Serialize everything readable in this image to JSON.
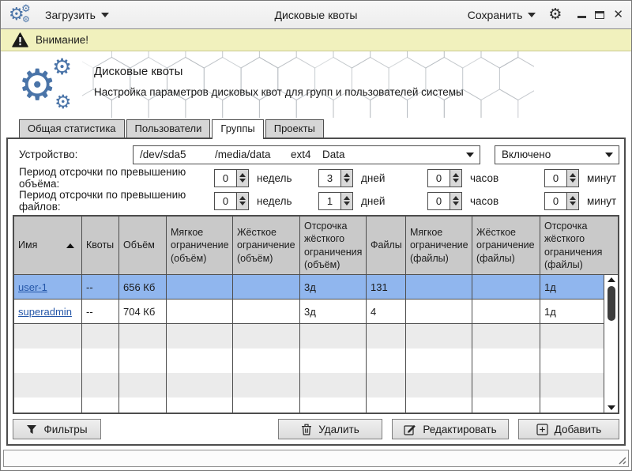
{
  "window": {
    "load_menu": "Загрузить",
    "title": "Дисковые квоты",
    "save_menu": "Сохранить"
  },
  "warning": {
    "text": "Внимание!"
  },
  "header": {
    "title": "Дисковые квоты",
    "subtitle": "Настройка параметров дисковых квот для групп и пользователей системы"
  },
  "tabs": [
    {
      "label": "Общая статистика",
      "active": false
    },
    {
      "label": "Пользователи",
      "active": false
    },
    {
      "label": "Группы",
      "active": true
    },
    {
      "label": "Проекты",
      "active": false
    }
  ],
  "device_row": {
    "label": "Устройство:",
    "device": {
      "path": "/dev/sda5",
      "mount": "/media/data",
      "fs": "ext4",
      "name": "Data"
    },
    "status": "Включено"
  },
  "grace": {
    "units": {
      "weeks": "недель",
      "days": "дней",
      "hours": "часов",
      "minutes": "минут"
    },
    "volume": {
      "label": "Период отсрочки по превышению объёма:",
      "weeks": "0",
      "days": "3",
      "hours": "0",
      "minutes": "0"
    },
    "files": {
      "label": "Период отсрочки по превышению файлов:",
      "weeks": "0",
      "days": "1",
      "hours": "0",
      "minutes": "0"
    }
  },
  "table": {
    "columns": [
      "Имя",
      "Квоты",
      "Объём",
      "Мягкое ограничение (объём)",
      "Жёсткое ограничение (объём)",
      "Отсрочка жёсткого ограничения (объём)",
      "Файлы",
      "Мягкое ограничение (файлы)",
      "Жёсткое ограничение (файлы)",
      "Отсрочка жёсткого ограничения (файлы)"
    ],
    "sort": {
      "column": "Имя",
      "direction": "asc"
    },
    "rows": [
      {
        "name": "user-1",
        "quotas": "--",
        "volume": "656 Кб",
        "soft_volume": "",
        "hard_volume": "",
        "grace_volume": "3д",
        "files": "131",
        "soft_files": "",
        "hard_files": "",
        "grace_files": "1д",
        "selected": true
      },
      {
        "name": "superadmin",
        "quotas": "--",
        "volume": "704 Кб",
        "soft_volume": "",
        "hard_volume": "",
        "grace_volume": "3д",
        "files": "4",
        "soft_files": "",
        "hard_files": "",
        "grace_files": "1д",
        "selected": false
      }
    ]
  },
  "actions": {
    "filters": "Фильтры",
    "delete": "Удалить",
    "edit": "Редактировать",
    "add": "Добавить"
  },
  "icons": {
    "gear": "⚙",
    "close": "✕"
  },
  "colors": {
    "accent_blue": "#4a74a8",
    "selected_row": "#90b6ee",
    "warning_bg": "#f1f1bd",
    "link": "#2456a8"
  }
}
